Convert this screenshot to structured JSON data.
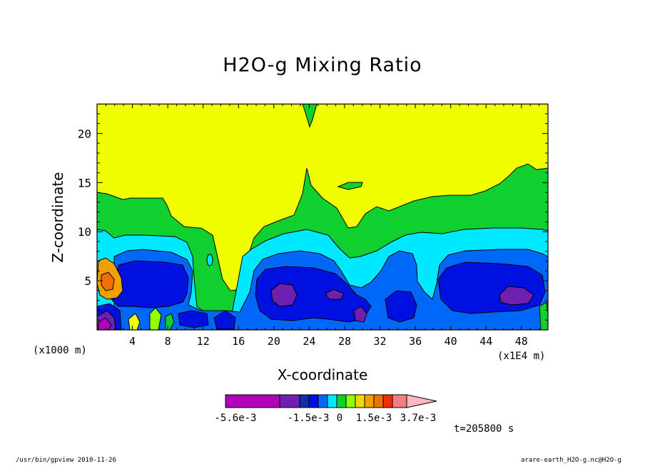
{
  "chart_data": {
    "type": "heatmap",
    "title": "H2O-g Mixing Ratio",
    "xlabel": "X-coordinate",
    "ylabel": "Z-coordinate",
    "x_unit_label": "(x1000 m)",
    "x_scale_label": "(x1E4 m)",
    "x_ticks": [
      4,
      8,
      12,
      16,
      20,
      24,
      28,
      32,
      36,
      40,
      44,
      48
    ],
    "y_ticks": [
      5,
      10,
      15,
      20
    ],
    "xlim": [
      0,
      51
    ],
    "ylim": [
      0,
      23
    ],
    "time_label": "t=205800 s",
    "colorbar": {
      "labels": [
        "-5.6e-3",
        "-1.5e-3",
        "0",
        "1.5e-3",
        "3.7e-3"
      ],
      "colors": [
        "#b000b8",
        "#b000b8",
        "#7020b0",
        "#1030a8",
        "#0010e0",
        "#0068f8",
        "#00e8ff",
        "#10d030",
        "#90ff00",
        "#f0d800",
        "#f0a000",
        "#f07000",
        "#f03000",
        "#f08080",
        "#ffb8c0"
      ]
    },
    "fields": {
      "background": "#f0ff00",
      "background_value": 0,
      "description_levels": [
        "yellow",
        "green",
        "cyan",
        "blue",
        "dark-blue",
        "purple"
      ]
    }
  },
  "footer": {
    "left": "/usr/bin/gpview   2010-11-26",
    "right": "arare-earth_H2O-g.nc@H2O-g"
  }
}
